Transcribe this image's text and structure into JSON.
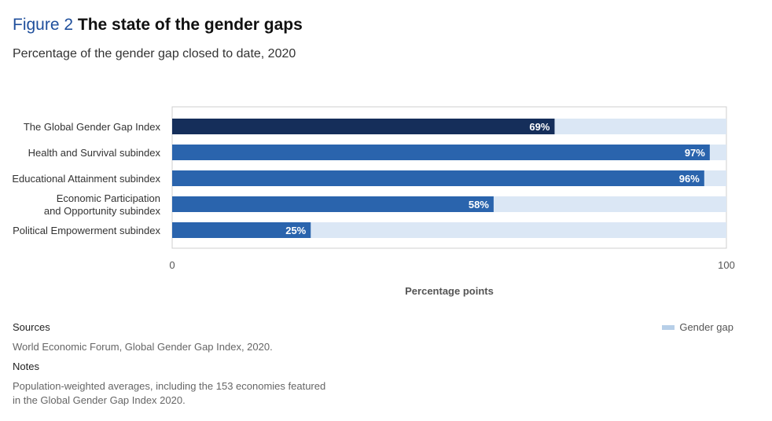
{
  "header": {
    "figure_label": "Figure 2",
    "title": "The state of the gender gaps",
    "subtitle": "Percentage of the gender gap closed to date, 2020"
  },
  "colors": {
    "overall_bar": "#152e5a",
    "subindex_bar": "#2a64ad",
    "gap_bar": "#dbe7f5",
    "legend_swatch": "#b7cfe8"
  },
  "chart_data": {
    "type": "bar",
    "orientation": "horizontal",
    "categories": [
      "The Global Gender Gap Index",
      "Health and Survival subindex",
      "Educational Attainment subindex",
      "Economic Participation\nand Opportunity subindex",
      "Political Empowerment subindex"
    ],
    "values": [
      69,
      97,
      96,
      58,
      25
    ],
    "data_labels": [
      "69%",
      "97%",
      "96%",
      "58%",
      "25%"
    ],
    "xlabel": "Percentage points",
    "xlim": [
      0,
      100
    ],
    "xticks": [
      "0",
      "100"
    ],
    "legend": {
      "position": "bottom-right",
      "entries": [
        "Gender gap"
      ]
    }
  },
  "footer": {
    "sources_heading": "Sources",
    "sources_text": "World Economic Forum, Global Gender Gap Index, 2020.",
    "notes_heading": "Notes",
    "notes_text": "Population-weighted averages, including the 153 economies featured in the Global Gender Gap Index 2020."
  }
}
